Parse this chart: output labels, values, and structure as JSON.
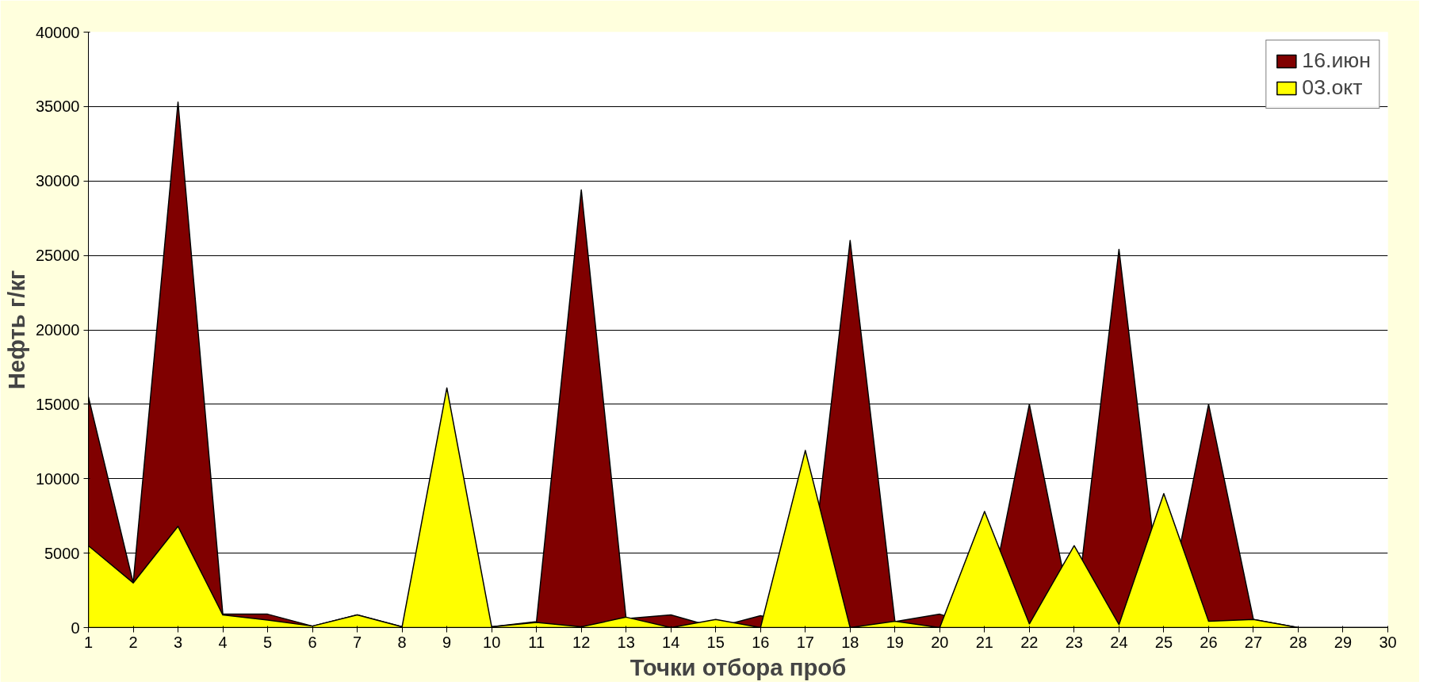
{
  "chart_data": {
    "type": "area",
    "xlabel": "Точки отбора проб",
    "ylabel": "Нефть г/кг",
    "x": [
      1,
      2,
      3,
      4,
      5,
      6,
      7,
      8,
      9,
      10,
      11,
      12,
      13,
      14,
      15,
      16,
      17,
      18,
      19,
      20,
      21,
      22,
      23,
      24,
      25,
      26,
      27,
      28,
      29,
      30
    ],
    "series": [
      {
        "name": "16.июн",
        "color": "#800000",
        "values": [
          15500,
          3000,
          35300,
          900,
          900,
          100,
          850,
          50,
          0,
          50,
          400,
          29400,
          600,
          850,
          null,
          800,
          null,
          26000,
          400,
          900,
          0,
          15000,
          null,
          25400,
          0,
          15000,
          550,
          0,
          0,
          0
        ]
      },
      {
        "name": "03.окт",
        "color": "#ffff00",
        "values": [
          5500,
          3000,
          6800,
          850,
          500,
          100,
          850,
          50,
          16100,
          50,
          350,
          50,
          700,
          0,
          550,
          0,
          11900,
          0,
          430,
          0,
          7800,
          250,
          5500,
          200,
          9000,
          430,
          550,
          0,
          0,
          0
        ]
      }
    ],
    "xlim": [
      1,
      30
    ],
    "xticks": [
      1,
      2,
      3,
      4,
      5,
      6,
      7,
      8,
      9,
      10,
      11,
      12,
      13,
      14,
      15,
      16,
      17,
      18,
      19,
      20,
      21,
      22,
      23,
      24,
      25,
      26,
      27,
      28,
      29,
      30
    ],
    "ylim": [
      0,
      40000
    ],
    "yticks": [
      0,
      5000,
      10000,
      15000,
      20000,
      25000,
      30000,
      35000,
      40000
    ],
    "grid": "y",
    "legend": "top right"
  }
}
